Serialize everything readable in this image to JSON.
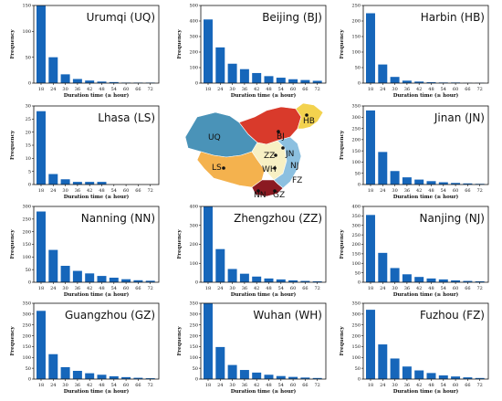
{
  "chart_data": [
    {
      "type": "bar",
      "title": "Urumqi (UQ)",
      "xlabel": "Duration time (≥ hour)",
      "ylabel": "Frequency",
      "categories": [
        "18",
        "24",
        "30",
        "36",
        "42",
        "48",
        "54",
        "60",
        "66",
        "72"
      ],
      "values": [
        152,
        50,
        17,
        8,
        5,
        3,
        2,
        1,
        1,
        1
      ],
      "ylim": [
        0,
        150
      ],
      "yticks": [
        0,
        50,
        100,
        150
      ]
    },
    {
      "type": "bar",
      "title": "Beijing (BJ)",
      "xlabel": "Duration time (≥ hour)",
      "ylabel": "Frequency",
      "categories": [
        "18",
        "24",
        "30",
        "36",
        "42",
        "48",
        "54",
        "60",
        "66",
        "72"
      ],
      "values": [
        410,
        230,
        125,
        90,
        65,
        45,
        35,
        25,
        20,
        15
      ],
      "ylim": [
        0,
        500
      ],
      "yticks": [
        0,
        100,
        200,
        300,
        400,
        500
      ]
    },
    {
      "type": "bar",
      "title": "Harbin (HB)",
      "xlabel": "Duration time (≥ hour)",
      "ylabel": "Frequency",
      "categories": [
        "18",
        "24",
        "30",
        "36",
        "42",
        "48",
        "54",
        "60",
        "66",
        "72"
      ],
      "values": [
        225,
        60,
        20,
        8,
        5,
        3,
        2,
        2,
        1,
        1
      ],
      "ylim": [
        0,
        250
      ],
      "yticks": [
        0,
        50,
        100,
        150,
        200,
        250
      ]
    },
    {
      "type": "bar",
      "title": "Lhasa (LS)",
      "xlabel": "Duration time (≥ hour)",
      "ylabel": "Frequency",
      "categories": [
        "18",
        "24",
        "30",
        "36",
        "42",
        "48",
        "54",
        "60",
        "66",
        "72"
      ],
      "values": [
        28,
        4,
        2,
        1,
        1,
        1,
        0,
        0,
        0,
        0
      ],
      "ylim": [
        0,
        30
      ],
      "yticks": [
        0,
        5,
        10,
        15,
        20,
        25,
        30
      ]
    },
    {
      "type": "bar",
      "title": "Jinan (JN)",
      "xlabel": "Duration time (≥ hour)",
      "ylabel": "Frequency",
      "categories": [
        "18",
        "24",
        "30",
        "36",
        "42",
        "48",
        "54",
        "60",
        "66",
        "72"
      ],
      "values": [
        330,
        145,
        60,
        32,
        22,
        15,
        10,
        7,
        5,
        3
      ],
      "ylim": [
        0,
        350
      ],
      "yticks": [
        0,
        50,
        100,
        150,
        200,
        250,
        300,
        350
      ]
    },
    {
      "type": "bar",
      "title": "Nanning (NN)",
      "xlabel": "Duration time (≥ hour)",
      "ylabel": "Frequency",
      "categories": [
        "18",
        "24",
        "30",
        "36",
        "42",
        "48",
        "54",
        "60",
        "66",
        "72"
      ],
      "values": [
        280,
        128,
        65,
        45,
        35,
        25,
        18,
        12,
        8,
        6
      ],
      "ylim": [
        0,
        300
      ],
      "yticks": [
        0,
        50,
        100,
        150,
        200,
        250,
        300
      ]
    },
    {
      "type": "bar",
      "title": "Zhengzhou (ZZ)",
      "xlabel": "Duration time (≥ hour)",
      "ylabel": "Frequency",
      "categories": [
        "18",
        "24",
        "30",
        "36",
        "42",
        "48",
        "54",
        "60",
        "66",
        "72"
      ],
      "values": [
        415,
        175,
        70,
        45,
        30,
        20,
        15,
        10,
        7,
        5
      ],
      "ylim": [
        0,
        400
      ],
      "yticks": [
        0,
        100,
        200,
        300,
        400
      ]
    },
    {
      "type": "bar",
      "title": "Nanjing (NJ)",
      "xlabel": "Duration time (≥ hour)",
      "ylabel": "Frequency",
      "categories": [
        "18",
        "24",
        "30",
        "36",
        "42",
        "48",
        "54",
        "60",
        "66",
        "72"
      ],
      "values": [
        355,
        155,
        75,
        42,
        28,
        20,
        15,
        10,
        7,
        5
      ],
      "ylim": [
        0,
        400
      ],
      "yticks": [
        0,
        50,
        100,
        150,
        200,
        250,
        300,
        350,
        400
      ]
    },
    {
      "type": "bar",
      "title": "Guangzhou (GZ)",
      "xlabel": "Duration time (≥ hour)",
      "ylabel": "Frequency",
      "categories": [
        "18",
        "24",
        "30",
        "36",
        "42",
        "48",
        "54",
        "60",
        "66",
        "72"
      ],
      "values": [
        315,
        115,
        55,
        38,
        27,
        20,
        13,
        9,
        6,
        4
      ],
      "ylim": [
        0,
        350
      ],
      "yticks": [
        0,
        50,
        100,
        150,
        200,
        250,
        300,
        350
      ]
    },
    {
      "type": "bar",
      "title": "Wuhan (WH)",
      "xlabel": "Duration time (≥ hour)",
      "ylabel": "Frequency",
      "categories": [
        "18",
        "24",
        "30",
        "36",
        "42",
        "48",
        "54",
        "60",
        "66",
        "72"
      ],
      "values": [
        355,
        148,
        65,
        42,
        30,
        20,
        14,
        10,
        7,
        5
      ],
      "ylim": [
        0,
        350
      ],
      "yticks": [
        0,
        50,
        100,
        150,
        200,
        250,
        300,
        350
      ]
    },
    {
      "type": "bar",
      "title": "Fuzhou (FZ)",
      "xlabel": "Duration time (≥ hour)",
      "ylabel": "Frequency",
      "categories": [
        "18",
        "24",
        "30",
        "36",
        "42",
        "48",
        "54",
        "60",
        "66",
        "72"
      ],
      "values": [
        320,
        160,
        95,
        58,
        40,
        28,
        17,
        12,
        8,
        5
      ],
      "ylim": [
        0,
        350
      ],
      "yticks": [
        0,
        50,
        100,
        150,
        200,
        250,
        300,
        350
      ]
    }
  ],
  "map": {
    "labels": [
      "UQ",
      "BJ",
      "HB",
      "LS",
      "JN",
      "ZZ",
      "NJ",
      "WH",
      "FZ",
      "NN",
      "GZ"
    ],
    "region_colors": {
      "northwest": "#4a93b8",
      "north": "#d93a2b",
      "northeast": "#f3d24e",
      "southwest": "#f4b24e",
      "central": "#f7f0c4",
      "east": "#8cc0e0",
      "south": "#8b1a22"
    }
  },
  "style": {
    "bar_color": "#1666ba",
    "axis_color": "#111111"
  }
}
